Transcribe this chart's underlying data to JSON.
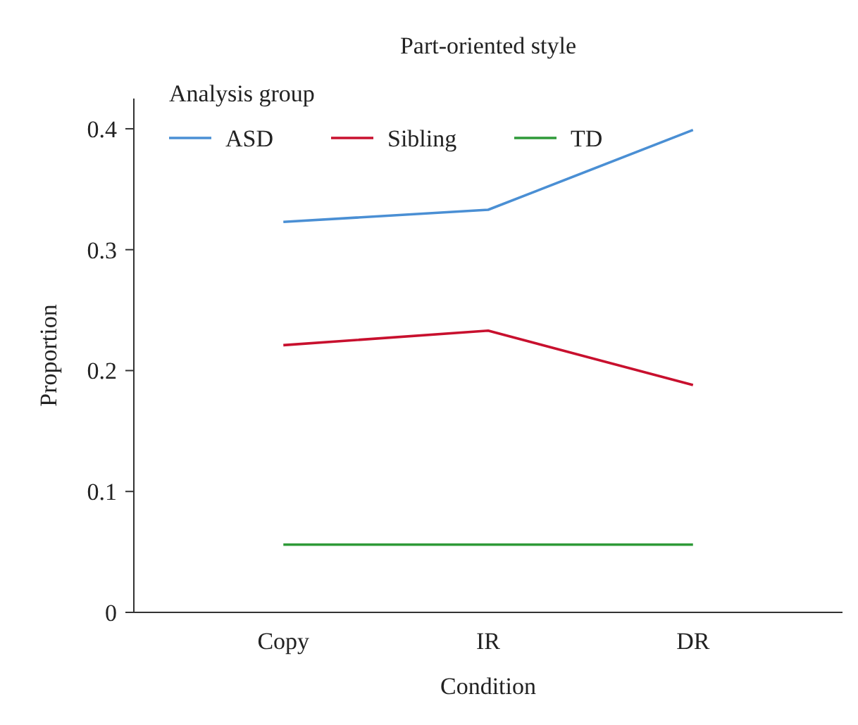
{
  "chart_data": {
    "type": "line",
    "title": "Part-oriented style",
    "xlabel": "Condition",
    "ylabel": "Proportion",
    "legend_title": "Analysis group",
    "categories": [
      "Copy",
      "IR",
      "DR"
    ],
    "series": [
      {
        "name": "ASD",
        "color": "#4a8fd4",
        "values": [
          0.323,
          0.333,
          0.399
        ]
      },
      {
        "name": "Sibling",
        "color": "#c8102e",
        "values": [
          0.221,
          0.233,
          0.188
        ]
      },
      {
        "name": "TD",
        "color": "#2e9a38",
        "values": [
          0.056,
          0.056,
          0.056
        ]
      }
    ],
    "ylim": [
      0,
      0.425
    ],
    "yticks": [
      {
        "value": 0,
        "label": "0"
      },
      0.1,
      0.2,
      0.3,
      0.4
    ],
    "grid": false,
    "legend": "top left",
    "marker": "none",
    "line_style": "solid"
  }
}
